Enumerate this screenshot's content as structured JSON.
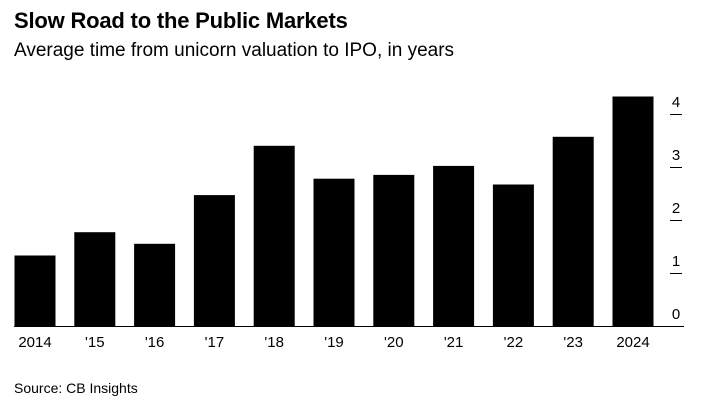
{
  "chart_data": {
    "type": "bar",
    "title": "Slow Road to the Public Markets",
    "subtitle": "Average time from unicorn valuation to IPO, in years",
    "categories": [
      "2014",
      "'15",
      "'16",
      "'17",
      "'18",
      "'19",
      "'20",
      "'21",
      "'22",
      "'23",
      "2024"
    ],
    "values": [
      1.33,
      1.77,
      1.55,
      2.47,
      3.4,
      2.78,
      2.85,
      3.02,
      2.67,
      3.57,
      4.33
    ],
    "y_ticks": [
      0,
      1,
      2,
      3,
      4
    ],
    "ylim": [
      0,
      4.33
    ],
    "xlabel": "",
    "ylabel": "",
    "y_axis_side": "right",
    "grid": false,
    "bar_color": "#000000",
    "source": "Source: CB Insights"
  }
}
